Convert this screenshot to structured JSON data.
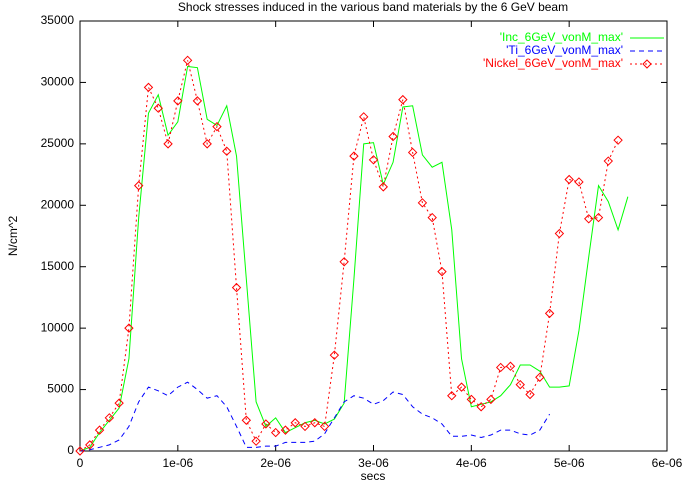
{
  "chart_data": {
    "type": "line",
    "title": "Shock stresses induced in the various band materials by the 6 GeV beam",
    "xlabel": "secs",
    "ylabel": "N/cm^2",
    "xlim": [
      0,
      6e-06
    ],
    "ylim": [
      0,
      35000
    ],
    "xticks": [
      0,
      {
        "value": 1e-06,
        "label": "1e-06"
      },
      {
        "value": 2e-06,
        "label": "2e-06"
      },
      {
        "value": 3e-06,
        "label": "3e-06"
      },
      {
        "value": 4e-06,
        "label": "4e-06"
      },
      {
        "value": 5e-06,
        "label": "5e-06"
      },
      {
        "value": 6e-06,
        "label": "6e-06"
      }
    ],
    "yticks": [
      0,
      5000,
      10000,
      15000,
      20000,
      25000,
      30000,
      35000
    ],
    "legend": "upper right",
    "series": [
      {
        "name": "'Inc_6GeV_vonM_max'",
        "color": "#00ff00",
        "style": "solid",
        "x": [
          0,
          1e-07,
          2e-07,
          3e-07,
          4e-07,
          5e-07,
          6e-07,
          7e-07,
          8e-07,
          9e-07,
          1e-06,
          1.1e-06,
          1.2e-06,
          1.3e-06,
          1.4e-06,
          1.5e-06,
          1.6e-06,
          1.7e-06,
          1.8e-06,
          1.9e-06,
          2e-06,
          2.1e-06,
          2.2e-06,
          2.3e-06,
          2.4e-06,
          2.5e-06,
          2.6e-06,
          2.7e-06,
          2.8e-06,
          2.9e-06,
          3e-06,
          3.1e-06,
          3.2e-06,
          3.3e-06,
          3.4e-06,
          3.5e-06,
          3.6e-06,
          3.7e-06,
          3.8e-06,
          3.9e-06,
          4e-06,
          4.1e-06,
          4.2e-06,
          4.3e-06,
          4.4e-06,
          4.5e-06,
          4.6e-06,
          4.7e-06,
          4.8e-06,
          4.9e-06,
          5e-06,
          5.1e-06,
          5.2e-06,
          5.3e-06,
          5.4e-06,
          5.5e-06,
          5.6e-06
        ],
        "values": [
          0,
          300,
          1500,
          2500,
          3500,
          7500,
          19000,
          27500,
          29000,
          25700,
          26800,
          31300,
          31200,
          27000,
          26500,
          28100,
          24000,
          14000,
          4000,
          2000,
          2700,
          1500,
          1900,
          2300,
          2500,
          2200,
          2600,
          3900,
          14000,
          25000,
          25100,
          21700,
          23500,
          28000,
          28100,
          24100,
          23100,
          23500,
          18000,
          7500,
          3600,
          3800,
          4000,
          4500,
          5400,
          7000,
          7000,
          6500,
          5200,
          5200,
          5300,
          9800,
          15800,
          21600,
          20300,
          18000,
          20700
        ]
      },
      {
        "name": "'Ti_6GeV_vonM_max'",
        "color": "#0000ff",
        "style": "dashed",
        "x": [
          0,
          1e-07,
          2e-07,
          3e-07,
          4e-07,
          5e-07,
          6e-07,
          7e-07,
          8e-07,
          9e-07,
          1e-06,
          1.1e-06,
          1.2e-06,
          1.3e-06,
          1.4e-06,
          1.5e-06,
          1.6e-06,
          1.7e-06,
          1.8e-06,
          1.9e-06,
          2e-06,
          2.1e-06,
          2.2e-06,
          2.3e-06,
          2.4e-06,
          2.5e-06,
          2.6e-06,
          2.7e-06,
          2.8e-06,
          2.9e-06,
          3e-06,
          3.1e-06,
          3.2e-06,
          3.3e-06,
          3.4e-06,
          3.5e-06,
          3.6e-06,
          3.7e-06,
          3.8e-06,
          3.9e-06,
          4e-06,
          4.1e-06,
          4.2e-06,
          4.3e-06,
          4.4e-06,
          4.5e-06,
          4.6e-06,
          4.7e-06,
          4.8e-06
        ],
        "values": [
          0,
          100,
          300,
          500,
          900,
          2000,
          4000,
          5200,
          4900,
          4500,
          5200,
          5600,
          5000,
          4300,
          4500,
          3600,
          2000,
          300,
          300,
          400,
          400,
          700,
          700,
          700,
          800,
          1400,
          2700,
          4000,
          4500,
          4300,
          3800,
          4100,
          4800,
          4600,
          3600,
          3000,
          2700,
          2200,
          1200,
          1200,
          1300,
          1100,
          1300,
          1700,
          1700,
          1400,
          1300,
          1700,
          3000
        ]
      },
      {
        "name": "'Nickel_6GeV_vonM_max'",
        "color": "#ff0000",
        "style": "dotted",
        "marker": "diamond",
        "x": [
          0,
          1e-07,
          2e-07,
          3e-07,
          4e-07,
          5e-07,
          6e-07,
          7e-07,
          8e-07,
          9e-07,
          1e-06,
          1.1e-06,
          1.2e-06,
          1.3e-06,
          1.4e-06,
          1.5e-06,
          1.6e-06,
          1.7e-06,
          1.8e-06,
          1.9e-06,
          2e-06,
          2.1e-06,
          2.2e-06,
          2.3e-06,
          2.4e-06,
          2.5e-06,
          2.6e-06,
          2.7e-06,
          2.8e-06,
          2.9e-06,
          3e-06,
          3.1e-06,
          3.2e-06,
          3.3e-06,
          3.4e-06,
          3.5e-06,
          3.6e-06,
          3.7e-06,
          3.8e-06,
          3.9e-06,
          4e-06,
          4.1e-06,
          4.2e-06,
          4.3e-06,
          4.4e-06,
          4.5e-06,
          4.6e-06,
          4.7e-06,
          4.8e-06,
          4.9e-06,
          5e-06,
          5.1e-06,
          5.2e-06,
          5.3e-06,
          5.4e-06,
          5.5e-06
        ],
        "values": [
          0,
          500,
          1700,
          2700,
          3900,
          10000,
          21600,
          29600,
          27900,
          25000,
          28500,
          31800,
          28500,
          25000,
          26400,
          24400,
          13300,
          2500,
          800,
          2200,
          1500,
          1700,
          2300,
          2000,
          2300,
          2000,
          7800,
          15400,
          24000,
          27200,
          23700,
          21500,
          25600,
          28600,
          24300,
          20200,
          19000,
          14600,
          4500,
          5200,
          4200,
          3600,
          4200,
          6800,
          6900,
          5400,
          4600,
          6000,
          11200,
          17700,
          22100,
          21900,
          18900,
          19000,
          23600,
          25300
        ]
      }
    ]
  }
}
